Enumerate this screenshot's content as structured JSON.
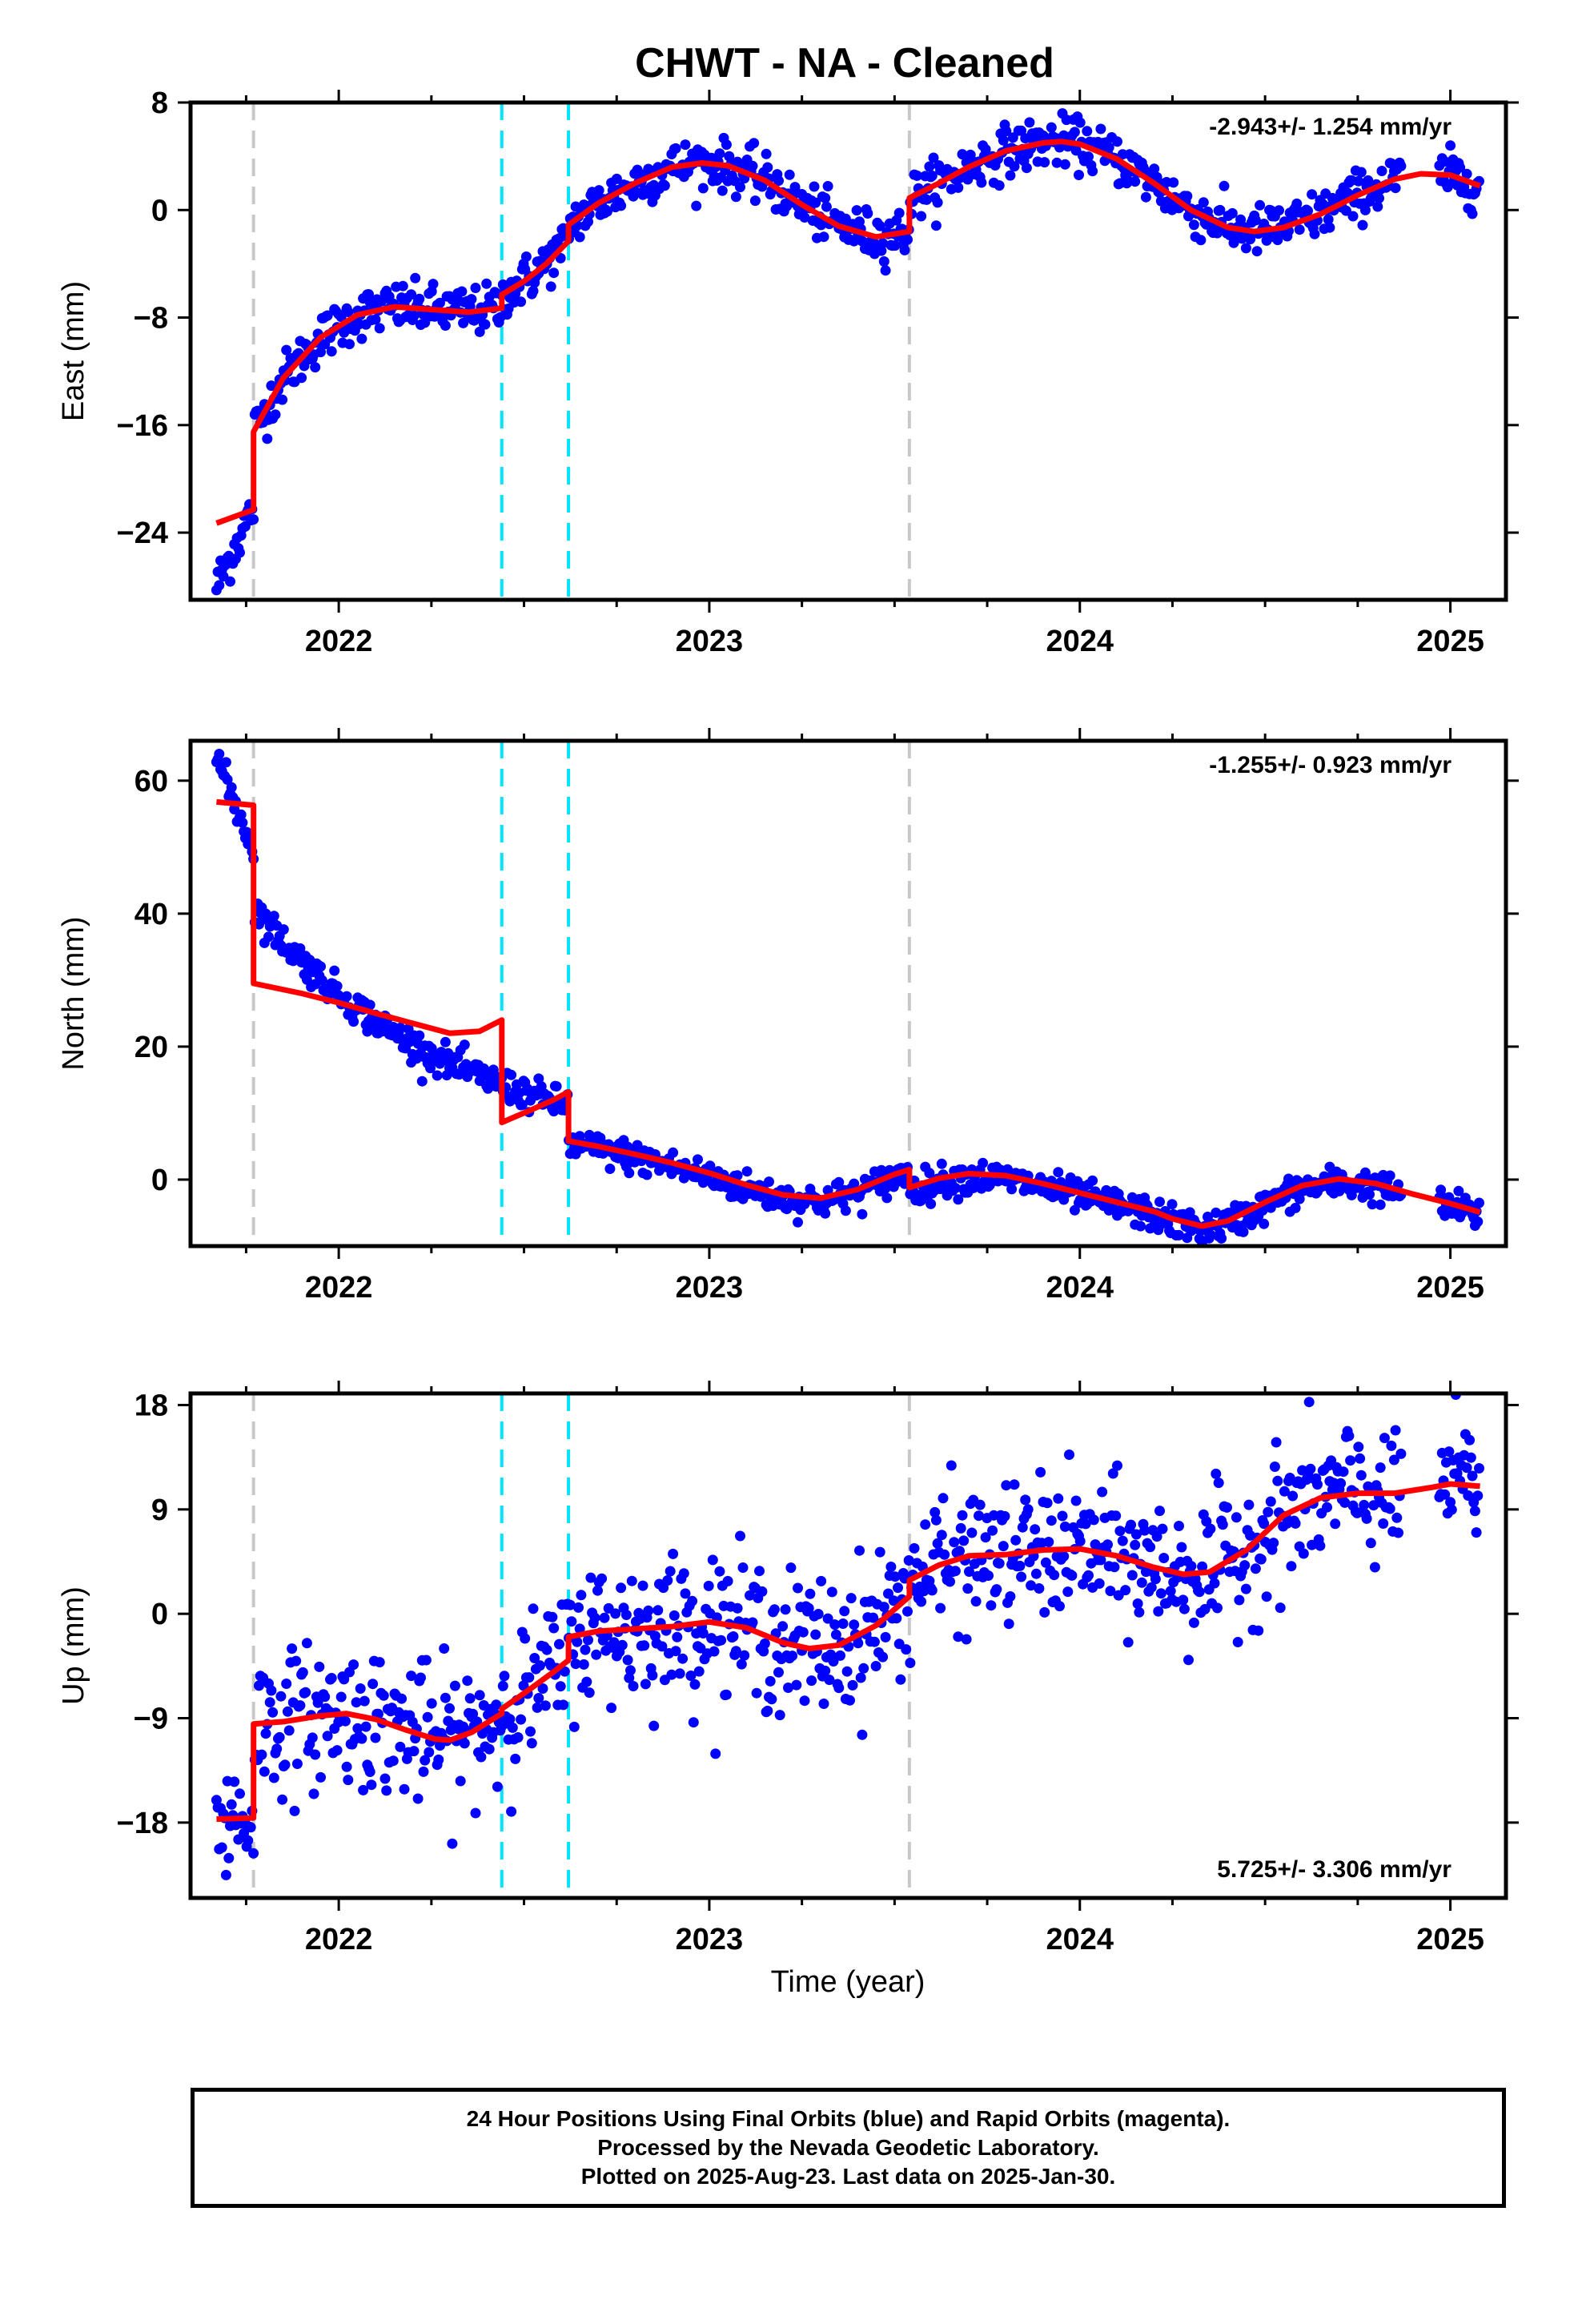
{
  "title": "CHWT  - NA - Cleaned",
  "xlabel": "Time (year)",
  "footer": {
    "line1": "24 Hour Positions Using Final Orbits (blue) and Rapid Orbits (magenta).",
    "line2": "Processed by the Nevada Geodetic Laboratory.",
    "line3": "Plotted on 2025-Aug-23. Last data on 2025-Jan-30."
  },
  "colors": {
    "points": "#0000ff",
    "model": "#ff0000",
    "gray_line": "#c8c8c8",
    "cyan_line": "#00e5ff",
    "frame": "#000000"
  },
  "chart_data": [
    {
      "type": "scatter",
      "name": "east",
      "ylabel": "East (mm)",
      "rate_text": "-2.943+/- 1.254 mm/yr",
      "rate_position": "top-right",
      "xlim": [
        2021.6,
        2025.15
      ],
      "ylim": [
        -29,
        8
      ],
      "yticks": [
        -24,
        -16,
        -8,
        0,
        8
      ],
      "xticks": [
        "2022",
        "2023",
        "2024",
        "2025"
      ],
      "gray_lines": [
        2021.77,
        2023.54
      ],
      "cyan_lines": [
        2022.44,
        2022.62
      ],
      "model_segments": [
        {
          "x": [
            2021.67,
            2021.77
          ],
          "y": [
            -23.3,
            -22.3
          ]
        },
        {
          "x": [
            2021.77,
            2021.85,
            2021.95,
            2022.05,
            2022.15,
            2022.25,
            2022.35,
            2022.44
          ],
          "y": [
            -16.5,
            -12.5,
            -9.5,
            -7.8,
            -7.2,
            -7.4,
            -7.6,
            -7.3
          ]
        },
        {
          "x": [
            2022.44,
            2022.5,
            2022.56,
            2022.62
          ],
          "y": [
            -6.3,
            -5.3,
            -4.0,
            -2.3
          ]
        },
        {
          "x": [
            2022.62,
            2022.7,
            2022.8,
            2022.9,
            2022.98,
            2023.05,
            2023.15,
            2023.25,
            2023.35,
            2023.45,
            2023.54
          ],
          "y": [
            -1.1,
            0.5,
            2.0,
            3.2,
            3.5,
            3.3,
            2.2,
            0.4,
            -1.2,
            -2.0,
            -1.6
          ]
        },
        {
          "x": [
            2023.54,
            2023.62,
            2023.7,
            2023.8,
            2023.9,
            2023.95,
            2024.0,
            2024.1,
            2024.2,
            2024.3,
            2024.4,
            2024.47,
            2024.55,
            2024.65,
            2024.75,
            2024.85,
            2024.92,
            2025.0,
            2025.08
          ],
          "y": [
            0.9,
            2.0,
            3.2,
            4.4,
            5.0,
            5.1,
            4.9,
            3.8,
            2.0,
            0.0,
            -1.3,
            -1.6,
            -1.3,
            -0.3,
            1.1,
            2.3,
            2.7,
            2.6,
            1.8
          ]
        }
      ]
    },
    {
      "type": "scatter",
      "name": "north",
      "ylabel": "North (mm)",
      "rate_text": "-1.255+/- 0.923 mm/yr",
      "rate_position": "top-right",
      "xlim": [
        2021.6,
        2025.15
      ],
      "ylim": [
        -10,
        66
      ],
      "yticks": [
        0,
        20,
        40,
        60
      ],
      "xticks": [
        "2022",
        "2023",
        "2024",
        "2025"
      ],
      "gray_lines": [
        2021.77,
        2023.54
      ],
      "cyan_lines": [
        2022.44,
        2022.62
      ],
      "model_segments": [
        {
          "x": [
            2021.67,
            2021.77
          ],
          "y": [
            56.8,
            56.3
          ]
        },
        {
          "x": [
            2021.77,
            2021.9,
            2022.0,
            2022.1,
            2022.2,
            2022.3,
            2022.38,
            2022.44
          ],
          "y": [
            29.5,
            28.0,
            26.6,
            25.0,
            23.5,
            22.0,
            22.3,
            24.0
          ]
        },
        {
          "x": [
            2022.44,
            2022.52,
            2022.58,
            2022.62
          ],
          "y": [
            8.6,
            10.5,
            12.0,
            13.2
          ]
        },
        {
          "x": [
            2022.62,
            2022.7,
            2022.8,
            2022.9,
            2023.0,
            2023.1,
            2023.2,
            2023.3,
            2023.4,
            2023.5,
            2023.54
          ],
          "y": [
            5.8,
            5.0,
            3.8,
            2.5,
            1.0,
            -0.8,
            -2.3,
            -2.8,
            -1.5,
            0.8,
            1.5
          ]
        },
        {
          "x": [
            2023.54,
            2023.62,
            2023.7,
            2023.8,
            2023.9,
            2024.0,
            2024.1,
            2024.2,
            2024.25,
            2024.33,
            2024.4,
            2024.5,
            2024.6,
            2024.7,
            2024.8,
            2024.9,
            2025.0,
            2025.08
          ],
          "y": [
            -1.2,
            0.2,
            0.9,
            0.6,
            -0.6,
            -2.0,
            -3.4,
            -4.8,
            -5.9,
            -7.0,
            -6.2,
            -3.4,
            -0.9,
            0.1,
            -0.6,
            -2.2,
            -3.6,
            -4.9
          ]
        }
      ]
    },
    {
      "type": "scatter",
      "name": "up",
      "ylabel": "Up (mm)",
      "rate_text": "5.725+/- 3.306 mm/yr",
      "rate_position": "bottom-right",
      "xlim": [
        2021.6,
        2025.15
      ],
      "ylim": [
        -24.5,
        19
      ],
      "yticks": [
        -18,
        -9,
        0,
        9,
        18
      ],
      "xticks": [
        "2022",
        "2023",
        "2024",
        "2025"
      ],
      "gray_lines": [
        2021.77,
        2023.54
      ],
      "cyan_lines": [
        2022.44,
        2022.62
      ],
      "model_segments": [
        {
          "x": [
            2021.67,
            2021.77
          ],
          "y": [
            -17.7,
            -17.6
          ]
        },
        {
          "x": [
            2021.77,
            2021.85,
            2021.95,
            2022.02,
            2022.1,
            2022.18,
            2022.26,
            2022.3,
            2022.36,
            2022.44
          ],
          "y": [
            -9.5,
            -9.3,
            -8.8,
            -8.6,
            -9.1,
            -10.0,
            -10.8,
            -10.9,
            -10.2,
            -8.6
          ]
        },
        {
          "x": [
            2022.44,
            2022.52,
            2022.58,
            2022.62
          ],
          "y": [
            -8.2,
            -6.4,
            -5.0,
            -4.0
          ]
        },
        {
          "x": [
            2022.62,
            2022.7,
            2022.8,
            2022.9,
            2023.0,
            2023.1,
            2023.2,
            2023.27,
            2023.35,
            2023.45,
            2023.54
          ],
          "y": [
            -2.0,
            -1.5,
            -1.3,
            -1.1,
            -0.7,
            -1.2,
            -2.5,
            -3.0,
            -2.7,
            -1.0,
            1.5
          ]
        },
        {
          "x": [
            2023.54,
            2023.62,
            2023.7,
            2023.8,
            2023.9,
            2024.0,
            2024.1,
            2024.2,
            2024.28,
            2024.35,
            2024.45,
            2024.55,
            2024.65,
            2024.75,
            2024.85,
            2024.95,
            2025.0,
            2025.08
          ],
          "y": [
            2.9,
            4.2,
            5.0,
            5.1,
            5.5,
            5.6,
            5.0,
            4.0,
            3.4,
            3.6,
            5.5,
            8.5,
            10.0,
            10.4,
            10.4,
            10.9,
            11.2,
            11.0
          ]
        }
      ]
    }
  ]
}
